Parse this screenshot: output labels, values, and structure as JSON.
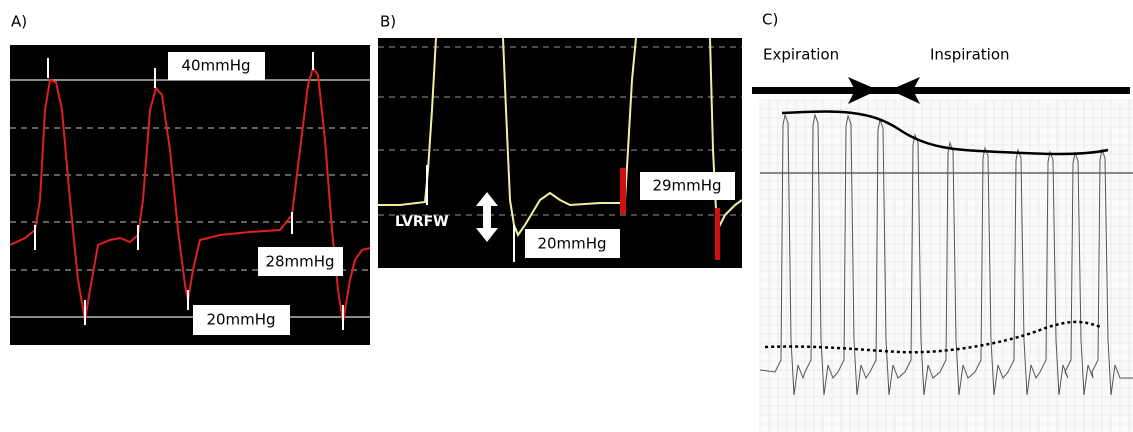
{
  "panel_a": {
    "label": "A)",
    "annotations": [
      "40mmHg",
      "28mmHg",
      "20mmHg"
    ]
  },
  "panel_b": {
    "label": "B)",
    "annotations": [
      "LVRFW",
      "29mmHg",
      "20mmHg"
    ]
  },
  "panel_c": {
    "label": "C)",
    "phases": [
      "Expiration",
      "Inspiration"
    ]
  }
}
